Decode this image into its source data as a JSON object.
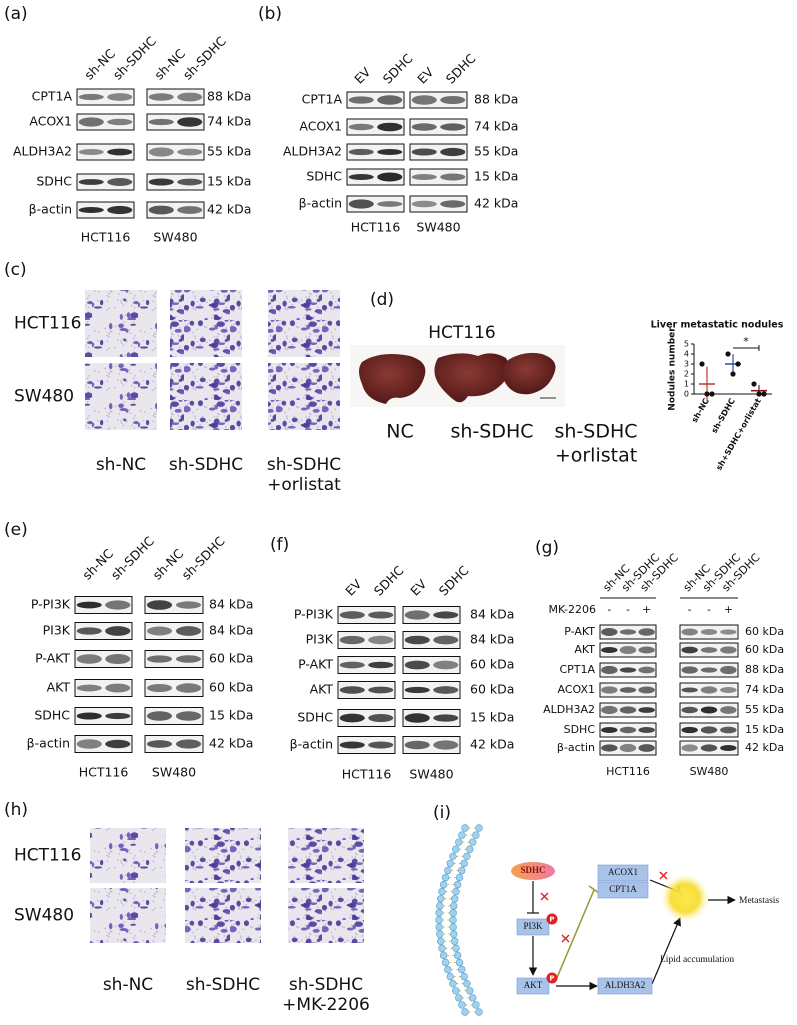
{
  "panels": {
    "a": {
      "label": "(a)",
      "lanes": [
        "sh-NC",
        "sh-SDHC",
        "sh-NC",
        "sh-SDHC"
      ],
      "proteins": [
        "CPT1A",
        "ACOX1",
        "ALDH3A2",
        "SDHC",
        "β-actin"
      ],
      "sizes": [
        "88 kDa",
        "74 kDa",
        "55 kDa",
        "15 kDa",
        "42 kDa"
      ],
      "cells": [
        "HCT116",
        "SW480"
      ]
    },
    "b": {
      "label": "(b)",
      "lanes": [
        "EV",
        "SDHC",
        "EV",
        "SDHC"
      ],
      "proteins": [
        "CPT1A",
        "ACOX1",
        "ALDH3A2",
        "SDHC",
        "β-actin"
      ],
      "sizes": [
        "88 kDa",
        "74 kDa",
        "55 kDa",
        "15 kDa",
        "42 kDa"
      ],
      "cells": [
        "HCT116",
        "SW480"
      ]
    },
    "c": {
      "label": "(c)",
      "rows": [
        "HCT116",
        "SW480"
      ],
      "columns": [
        [
          "sh-NC"
        ],
        [
          "sh-SDHC"
        ],
        [
          "sh-SDHC",
          "+orlistat"
        ]
      ]
    },
    "d": {
      "label": "(d)",
      "title": "HCT116",
      "groups": [
        [
          "NC"
        ],
        [
          "sh-SDHC"
        ],
        [
          "sh-SDHC",
          "+orlistat"
        ]
      ]
    },
    "e": {
      "label": "(e)",
      "lanes": [
        "sh-NC",
        "sh-SDHC",
        "sh-NC",
        "sh-SDHC"
      ],
      "proteins": [
        "P-PI3K",
        "PI3K",
        "P-AKT",
        "AKT",
        "SDHC",
        "β-actin"
      ],
      "sizes": [
        "84 kDa",
        "84 kDa",
        "60 kDa",
        "60 kDa",
        "15 kDa",
        "42 kDa"
      ],
      "cells": [
        "HCT116",
        "SW480"
      ]
    },
    "f": {
      "label": "(f)",
      "lanes": [
        "EV",
        "SDHC",
        "EV",
        "SDHC"
      ],
      "proteins": [
        "P-PI3K",
        "PI3K",
        "P-AKT",
        "AKT",
        "SDHC",
        "β-actin"
      ],
      "sizes": [
        "84 kDa",
        "84 kDa",
        "60 kDa",
        "60 kDa",
        "15 kDa",
        "42 kDa"
      ],
      "cells": [
        "HCT116",
        "SW480"
      ]
    },
    "g": {
      "label": "(g)",
      "lanes": [
        "sh-NC",
        "sh-SDHC",
        "sh-SDHC",
        "sh-NC",
        "sh-SDHC",
        "sh-SDHC"
      ],
      "treatment_label": "MK-2206",
      "treatments": [
        "-",
        "-",
        "+",
        "-",
        "-",
        "+"
      ],
      "proteins": [
        "P-AKT",
        "AKT",
        "CPT1A",
        "ACOX1",
        "ALDH3A2",
        "SDHC",
        "β-actin"
      ],
      "sizes": [
        "60 kDa",
        "60 kDa",
        "88 kDa",
        "74 kDa",
        "55 kDa",
        "15 kDa",
        "42 kDa"
      ],
      "cells": [
        "HCT116",
        "SW480"
      ]
    },
    "h": {
      "label": "(h)",
      "rows": [
        "HCT116",
        "SW480"
      ],
      "columns": [
        [
          "sh-NC"
        ],
        [
          "sh-SDHC"
        ],
        [
          "sh-SDHC",
          "+MK-2206"
        ]
      ]
    },
    "i": {
      "label": "(i)",
      "sdhc": "SDHC",
      "pi3k": "PI3K",
      "akt": "AKT",
      "acox1": "ACOX1",
      "cpt1a": "CPT1A",
      "aldh3a2": "ALDH3A2",
      "phospho": "P",
      "lipid": "Lipid accumulation",
      "metastasis": "Metastasis"
    }
  },
  "chart_data": {
    "type": "scatter",
    "title": "Liver metastatic nodules",
    "y_label": "Nodules number",
    "categories": [
      "sh-NC",
      "sh-SDHC",
      "sh+SDHC+orlistat"
    ],
    "colors": [
      "#c0392b",
      "#2e4fa3",
      "#7a1515"
    ],
    "points": [
      [
        3,
        0,
        0
      ],
      [
        4,
        3,
        2
      ],
      [
        1,
        0,
        0
      ]
    ],
    "means": [
      1,
      3,
      0.33
    ],
    "sd": [
      1.73,
      1,
      0.58
    ],
    "ylim": [
      0,
      5
    ],
    "yticks": [
      0,
      1,
      2,
      3,
      4,
      5
    ],
    "annotation": "*"
  }
}
